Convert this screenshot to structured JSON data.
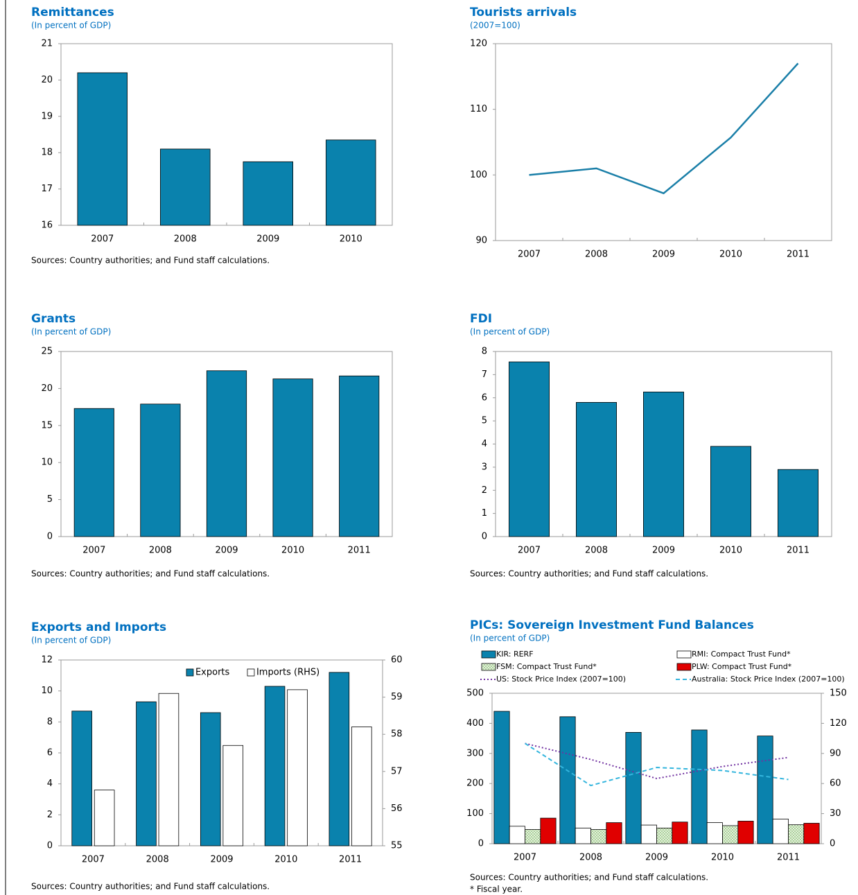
{
  "chart_data": [
    {
      "type": "bar",
      "title": "Remittances",
      "subtitle": "(In percent of GDP)",
      "categories": [
        "2007",
        "2008",
        "2009",
        "2010"
      ],
      "values": [
        20.2,
        18.1,
        17.75,
        18.35
      ],
      "color": "#0a82ad",
      "ylim": [
        16,
        21
      ],
      "yticks": [
        16,
        17,
        18,
        19,
        20,
        21
      ],
      "source": "Sources: Country authorities; and Fund staff calculations."
    },
    {
      "type": "line",
      "title": "Tourists arrivals",
      "subtitle": "(2007=100)",
      "categories": [
        "2007",
        "2008",
        "2009",
        "2010",
        "2011"
      ],
      "values": [
        100,
        101,
        97.2,
        105.7,
        117
      ],
      "color": "#1a7fa8",
      "ylim": [
        90,
        120
      ],
      "yticks": [
        90,
        100,
        110,
        120
      ]
    },
    {
      "type": "bar",
      "title": "Grants",
      "subtitle": "(In percent of GDP)",
      "categories": [
        "2007",
        "2008",
        "2009",
        "2010",
        "2011"
      ],
      "values": [
        17.3,
        17.9,
        22.4,
        21.3,
        21.7
      ],
      "color": "#0a82ad",
      "ylim": [
        0,
        25
      ],
      "yticks": [
        0,
        5,
        10,
        15,
        20,
        25
      ],
      "source": "Sources: Country authorities; and Fund staff calculations."
    },
    {
      "type": "bar",
      "title": "FDI",
      "subtitle": "(In percent of GDP)",
      "categories": [
        "2007",
        "2008",
        "2009",
        "2010",
        "2011"
      ],
      "values": [
        7.55,
        5.8,
        6.25,
        3.9,
        2.9
      ],
      "color": "#0a82ad",
      "ylim": [
        0,
        8
      ],
      "yticks": [
        0,
        1,
        2,
        3,
        4,
        5,
        6,
        7,
        8
      ],
      "source": "Sources: Country authorities; and Fund staff calculations."
    },
    {
      "type": "bar",
      "title": "Exports and Imports",
      "subtitle": "(In percent of GDP)",
      "categories": [
        "2007",
        "2008",
        "2009",
        "2010",
        "2011"
      ],
      "series": [
        {
          "name": "Exports",
          "color": "#0a82ad",
          "values": [
            8.7,
            9.3,
            8.6,
            10.3,
            11.2
          ]
        },
        {
          "name": "Imports (RHS)",
          "color": "#ffffff",
          "axis": "y2",
          "values": [
            56.5,
            59.1,
            57.7,
            59.2,
            58.2
          ]
        }
      ],
      "ylim": [
        0,
        12
      ],
      "yticks": [
        0,
        2,
        4,
        6,
        8,
        10,
        12
      ],
      "y2lim": [
        55,
        60
      ],
      "y2ticks": [
        55,
        56,
        57,
        58,
        59,
        60
      ],
      "legend": "top",
      "source": "Sources: Country authorities; and Fund staff calculations."
    },
    {
      "type": "bar",
      "title": "PICs:  Sovereign Investment  Fund Balances",
      "subtitle": "(In percent of GDP)",
      "categories": [
        "2007",
        "2008",
        "2009",
        "2010",
        "2011"
      ],
      "series": [
        {
          "name": "KIR: RERF",
          "color": "#0a82ad",
          "values": [
            440,
            422,
            370,
            378,
            358
          ]
        },
        {
          "name": "RMI: Compact Trust Fund*",
          "color": "#ffffff",
          "values": [
            58,
            52,
            62,
            70,
            82
          ]
        },
        {
          "name": "FSM: Compact Trust Fund*",
          "color": "#cfe8c4",
          "values": [
            47,
            47,
            52,
            60,
            63
          ]
        },
        {
          "name": "PLW: Compact Trust Fund*",
          "color": "#e00000",
          "values": [
            85,
            70,
            72,
            75,
            68
          ]
        },
        {
          "name": "US: Stock Price Index (2007=100)",
          "color": "#7030a0",
          "type": "line",
          "line_style": "dotted",
          "axis": "y2",
          "values": [
            100,
            84,
            65,
            77,
            86
          ]
        },
        {
          "name": "Australia: Stock Price Index (2007=100)",
          "color": "#33b5dd",
          "type": "line",
          "line_style": "dashed",
          "axis": "y2",
          "values": [
            100,
            58,
            76,
            73,
            64
          ]
        }
      ],
      "ylim": [
        0,
        500
      ],
      "yticks": [
        0,
        100,
        200,
        300,
        400,
        500
      ],
      "y2lim": [
        0,
        150
      ],
      "y2ticks": [
        0,
        30,
        60,
        90,
        120,
        150
      ],
      "legend": "above",
      "source": "Sources: Country authorities; and Fund staff calculations.",
      "note": "* Fiscal year."
    }
  ]
}
